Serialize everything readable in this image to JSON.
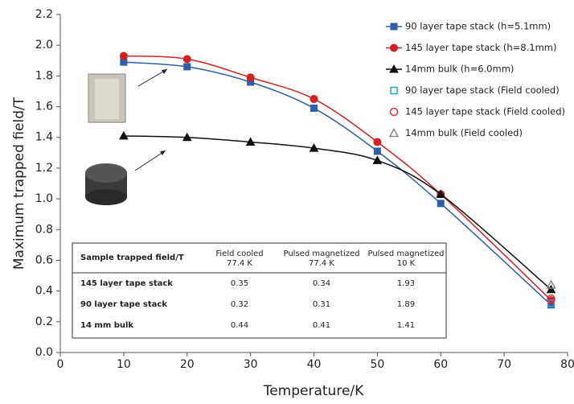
{
  "chart_data": {
    "type": "line",
    "x_label": "Temperature/K",
    "y_label": "Maximum trapped field/T",
    "xlim": [
      0,
      80
    ],
    "xticks": [
      0,
      10,
      20,
      30,
      40,
      50,
      60,
      70,
      80
    ],
    "ylim": [
      0,
      2.2
    ],
    "yticks": [
      {
        "value": 0,
        "label": "0.0"
      },
      0.2,
      0.4,
      0.6,
      0.8,
      {
        "value": 1,
        "label": "1.0"
      },
      1.2,
      1.4,
      1.6,
      1.8,
      {
        "value": 2,
        "label": "2.0"
      },
      2.2
    ],
    "legend": "top-right",
    "series": [
      {
        "name": "90 layer tape stack (h=5.1mm)",
        "color": "#2e5fa8",
        "marker": "square",
        "filled": true,
        "line": true,
        "x": [
          10,
          20,
          30,
          40,
          50,
          60,
          77.4
        ],
        "values": [
          1.89,
          1.86,
          1.76,
          1.59,
          1.31,
          0.97,
          0.31
        ]
      },
      {
        "name": "145 layer tape stack (h=8.1mm)",
        "color": "#d42020",
        "marker": "circle",
        "filled": true,
        "line": true,
        "x": [
          10,
          20,
          30,
          40,
          50,
          60,
          77.4
        ],
        "values": [
          1.93,
          1.91,
          1.79,
          1.65,
          1.37,
          1.03,
          0.34
        ]
      },
      {
        "name": "14mm bulk (h=6.0mm)",
        "color": "#111111",
        "marker": "triangle",
        "filled": true,
        "line": true,
        "x": [
          10,
          20,
          30,
          40,
          50,
          60,
          77.4
        ],
        "values": [
          1.41,
          1.4,
          1.37,
          1.33,
          1.25,
          1.03,
          0.41
        ]
      },
      {
        "name": "90 layer tape stack (Field cooled)",
        "color": "#19a7e8",
        "marker": "square",
        "filled": false,
        "line": false,
        "x": [
          77.4
        ],
        "values": [
          0.32
        ]
      },
      {
        "name": "145 layer tape stack (Field cooled)",
        "color": "#e03030",
        "marker": "circle",
        "filled": false,
        "line": false,
        "x": [
          77.4
        ],
        "values": [
          0.35
        ]
      },
      {
        "name": "14mm bulk (Field cooled)",
        "color": "#888888",
        "marker": "triangle",
        "filled": false,
        "line": false,
        "x": [
          77.4
        ],
        "values": [
          0.44
        ]
      }
    ],
    "table": {
      "header": [
        [
          "Sample trapped field/T"
        ],
        [
          "Field cooled",
          "77.4 K"
        ],
        [
          "Pulsed magnetized",
          "77.4 K"
        ],
        [
          "Pulsed magnetized",
          "10 K"
        ]
      ],
      "rows": [
        [
          "145 layer tape stack",
          "0.35",
          "0.34",
          "1.93"
        ],
        [
          "90 layer tape stack",
          "0.32",
          "0.31",
          "1.89"
        ],
        [
          "14 mm bulk",
          "0.44",
          "0.41",
          "1.41"
        ]
      ]
    }
  }
}
